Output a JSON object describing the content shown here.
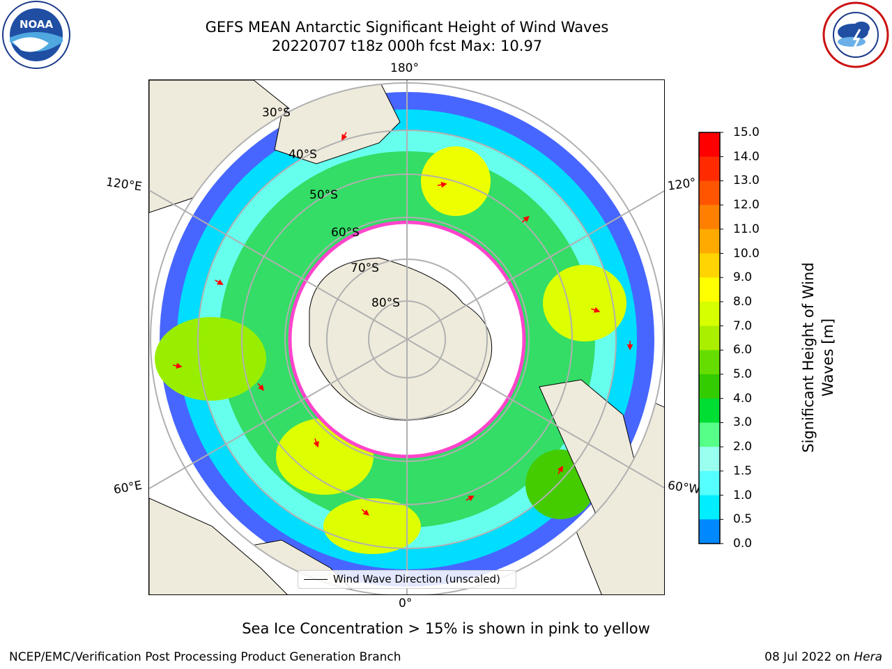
{
  "title": {
    "line1": "GEFS MEAN Antarctic Significant Height of Wind Waves",
    "line2": "20220707 t18z 000h fcst   Max: 10.97"
  },
  "logos": {
    "left": {
      "name": "noaa-logo",
      "text": "NOAA",
      "ring_text": "NATIONAL OCEANIC AND ATMOSPHERIC ADMINISTRATION · U.S. DEPARTMENT OF COMMERCE"
    },
    "right": {
      "name": "nws-logo",
      "ring_text": "NATIONAL WEATHER SERVICE"
    }
  },
  "map": {
    "projection": "south-polar-stereographic",
    "longitude_labels": {
      "top": "180°",
      "bottom": "0°",
      "left_upper": "120°E",
      "left_lower": "60°E",
      "right_upper": "120°",
      "right_lower": "60°W"
    },
    "latitude_labels": [
      "30°S",
      "40°S",
      "50°S",
      "60°S",
      "70°S",
      "80°S"
    ],
    "legend": "Wind Wave Direction (unscaled)",
    "colors": {
      "land": "#efebdc",
      "ocean_no_data": "#ffffff",
      "grid": "#b0b0b0",
      "arrow": "#ff0000",
      "sea_ice": "#ff44cc"
    }
  },
  "colorbar": {
    "title": "Significant Height of Wind Waves [m]",
    "ticks": [
      "15.0",
      "14.0",
      "13.0",
      "12.0",
      "11.0",
      "10.0",
      "9.0",
      "8.0",
      "7.0",
      "6.0",
      "5.0",
      "4.0",
      "3.0",
      "2.0",
      "1.5",
      "1.0",
      "0.5",
      "0.0"
    ],
    "colors": [
      "#ff0000",
      "#ff2a00",
      "#ff5500",
      "#ff8000",
      "#ffaa00",
      "#ffd400",
      "#ffff00",
      "#d6ff00",
      "#aaee00",
      "#66dd00",
      "#33cc00",
      "#00dd33",
      "#55ff88",
      "#99ffee",
      "#55ffff",
      "#00eeff",
      "#0088ff",
      "#0000ff"
    ]
  },
  "footer": {
    "note": "Sea Ice Concentration > 15% is shown in pink to yellow",
    "credit_left": "NCEP/EMC/Verification Post Processing Product Generation Branch",
    "credit_right_date": "08 Jul 2022 on ",
    "credit_right_host": "Hera"
  }
}
